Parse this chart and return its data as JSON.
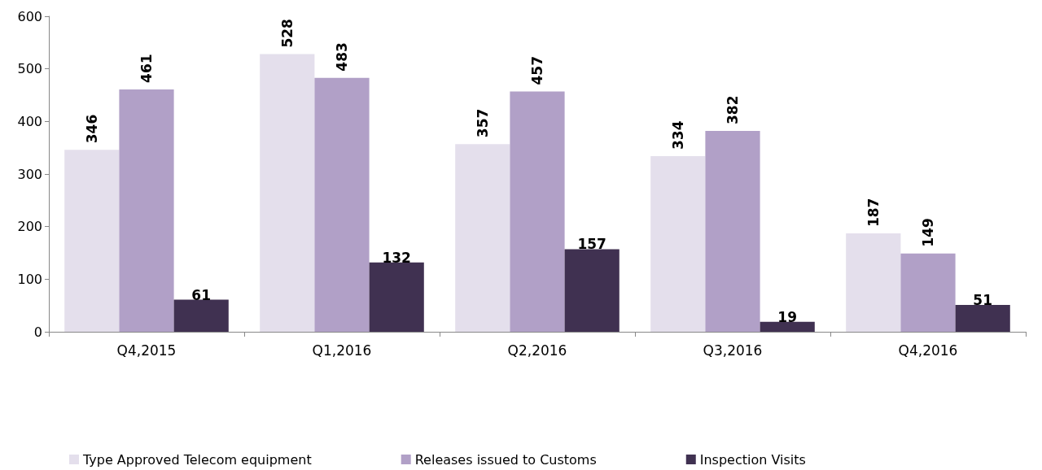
{
  "chart_data": {
    "type": "bar",
    "categories": [
      "Q4,2015",
      "Q1,2016",
      "Q2,2016",
      "Q3,2016",
      "Q4,2016"
    ],
    "series": [
      {
        "name": "Type Approved Telecom equipment",
        "color": "#e4dfec",
        "values": [
          346,
          528,
          357,
          334,
          187
        ]
      },
      {
        "name": "Releases issued to Customs",
        "color": "#b1a0c7",
        "values": [
          461,
          483,
          457,
          382,
          149
        ]
      },
      {
        "name": "Inspection Visits",
        "color": "#403151",
        "values": [
          61,
          132,
          157,
          19,
          51
        ]
      }
    ],
    "ylim": [
      0,
      600
    ],
    "yticks": [
      0,
      100,
      200,
      300,
      400,
      500,
      600
    ],
    "grid": false,
    "legend": "bottom",
    "data_labels": true
  }
}
